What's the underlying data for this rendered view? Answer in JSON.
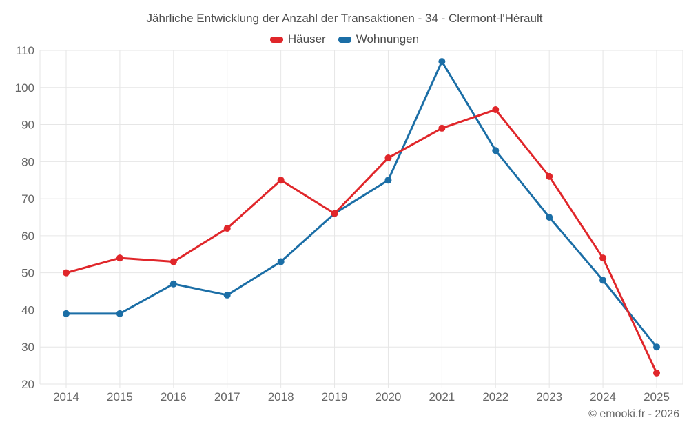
{
  "footer": "© emooki.fr - 2026",
  "colors": {
    "haeuser": "#e0262a",
    "wohnungen": "#1b6ea6",
    "grid": "#e6e6e6",
    "axis_text": "#666666",
    "title_text": "#4e4e4e"
  },
  "chart_data": {
    "type": "line",
    "title": "Jährliche Entwicklung der Anzahl der Transaktionen - 34 - Clermont-l'Hérault",
    "categories": [
      "2014",
      "2015",
      "2016",
      "2017",
      "2018",
      "2019",
      "2020",
      "2021",
      "2022",
      "2023",
      "2024",
      "2025"
    ],
    "series": [
      {
        "key": "haeuser",
        "name": "Häuser",
        "color": "#e0262a",
        "values": [
          50,
          54,
          53,
          62,
          75,
          66,
          81,
          89,
          94,
          76,
          54,
          23
        ]
      },
      {
        "key": "wohnungen",
        "name": "Wohnungen",
        "color": "#1b6ea6",
        "values": [
          39,
          39,
          47,
          44,
          53,
          66,
          75,
          107,
          83,
          65,
          48,
          30
        ]
      }
    ],
    "ylim": [
      20,
      110
    ],
    "ytick_step": 10,
    "grid": true,
    "legend_position": "top"
  }
}
